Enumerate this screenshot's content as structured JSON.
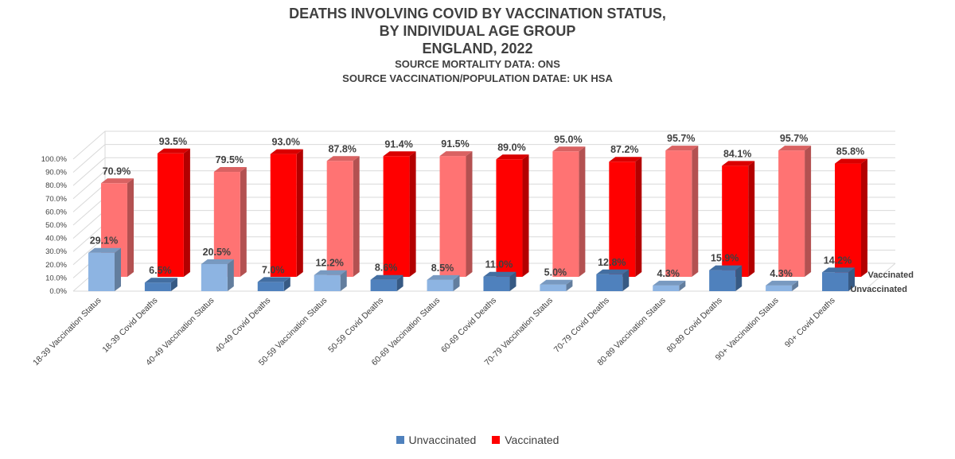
{
  "title_lines": [
    "DEATHS INVOLVING COVID BY VACCINATION STATUS,",
    "BY INDIVIDUAL AGE GROUP",
    "ENGLAND, 2022"
  ],
  "subtitle_lines": [
    "SOURCE MORTALITY DATA: ONS",
    "SOURCE VACCINATION/POPULATION DATAE: UK HSA"
  ],
  "colors": {
    "unvaccinated": "#4f81bd",
    "unvaccinated_light": "#8db4e2",
    "vaccinated": "#ff0000",
    "vaccinated_light": "#ff7373"
  },
  "chart_data": {
    "type": "bar",
    "subtype": "3d-column",
    "categories": [
      "18-39 Vaccination Status",
      "18-39 Covid Deaths",
      "40-49 Vaccination Status",
      "40-49 Covid Deaths",
      "50-59 Vaccination Status",
      "50-59 Covid Deaths",
      "60-69 Vaccination Status",
      "60-69 Covid Deaths",
      "70-79 Vaccination Status",
      "70-79 Covid Deaths",
      "80-89 Vaccination Status",
      "80-89 Covid Deaths",
      "90+ Vaccination Status",
      "90+ Covid Deaths"
    ],
    "series": [
      {
        "name": "Unvaccinated",
        "values": [
          29.1,
          6.5,
          20.5,
          7.0,
          12.2,
          8.6,
          8.5,
          11.0,
          5.0,
          12.8,
          4.3,
          15.9,
          4.3,
          14.2
        ],
        "labels": [
          "29.1%",
          "6.5%",
          "20.5%",
          "7.0%",
          "12.2%",
          "8.6%",
          "8.5%",
          "11.0%",
          "5.0%",
          "12.8%",
          "4.3%",
          "15.9%",
          "4.3%",
          "14.2%"
        ]
      },
      {
        "name": "Vaccinated",
        "values": [
          70.9,
          93.5,
          79.5,
          93.0,
          87.8,
          91.4,
          91.5,
          89.0,
          95.0,
          87.2,
          95.7,
          84.1,
          95.7,
          85.8
        ],
        "labels": [
          "70.9%",
          "93.5%",
          "79.5%",
          "93.0%",
          "87.8%",
          "91.4%",
          "91.5%",
          "89.0%",
          "95.0%",
          "87.2%",
          "95.7%",
          "84.1%",
          "95.7%",
          "85.8%"
        ]
      }
    ],
    "y_ticks": [
      "0.0%",
      "10.0%",
      "20.0%",
      "30.0%",
      "40.0%",
      "50.0%",
      "60.0%",
      "70.0%",
      "80.0%",
      "90.0%",
      "100.0%"
    ],
    "ylim": [
      0,
      100
    ],
    "grid": true,
    "legend_position": "bottom",
    "depth_axis_labels": [
      "Vaccinated",
      "Unvaccinated"
    ]
  },
  "legend": {
    "items": [
      {
        "label": "Unvaccinated"
      },
      {
        "label": "Vaccinated"
      }
    ]
  }
}
